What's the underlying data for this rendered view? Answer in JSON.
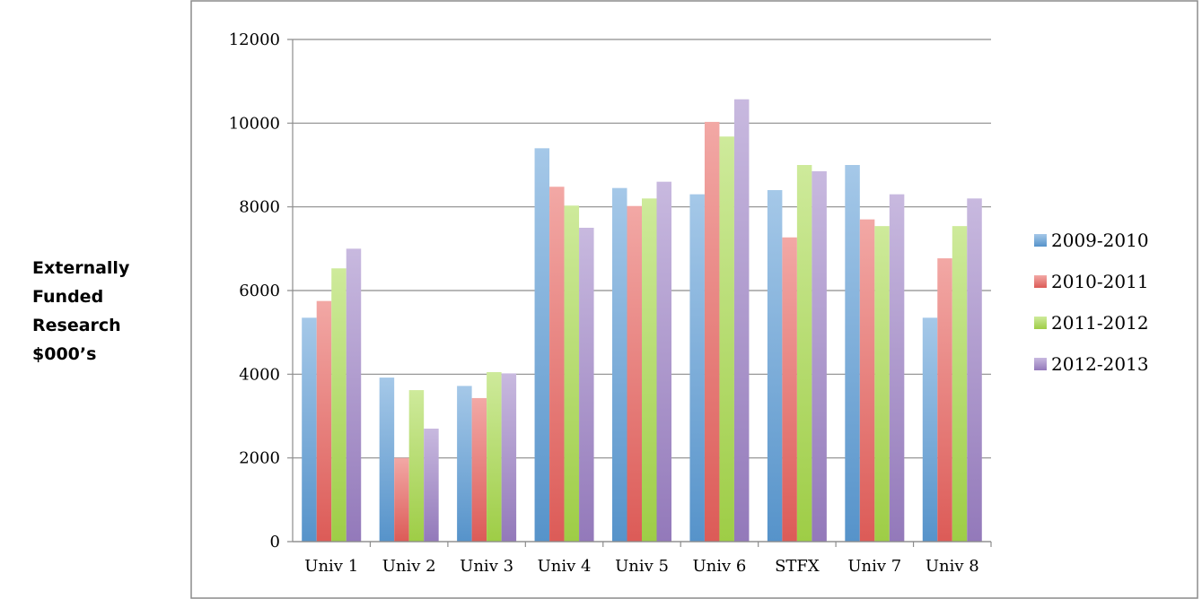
{
  "chart_data": {
    "type": "bar",
    "title": "",
    "xlabel": "",
    "ylabel_lines": [
      "Externally",
      "Funded",
      "Research",
      "$000’s"
    ],
    "categories": [
      "Univ 1",
      "Univ 2",
      "Univ 3",
      "Univ 4",
      "Univ 5",
      "Univ 6",
      "STFX",
      "Univ 7",
      "Univ 8"
    ],
    "ylim": [
      0,
      12000
    ],
    "yticks": [
      "0",
      "2000",
      "4000",
      "6000",
      "8000",
      "10000",
      "12000"
    ],
    "grid": true,
    "legend_position": "right",
    "series": [
      {
        "name": "2009-2010",
        "color": "#5b9bd5",
        "values": [
          5350,
          3920,
          3720,
          9400,
          8450,
          8300,
          8400,
          9000,
          5350
        ]
      },
      {
        "name": "2010-2011",
        "color": "#e8605c",
        "values": [
          5750,
          2000,
          3430,
          8480,
          8020,
          10030,
          7270,
          7700,
          6770
        ]
      },
      {
        "name": "2011-2012",
        "color": "#a6d84a",
        "values": [
          6530,
          3620,
          4050,
          8030,
          8200,
          9680,
          9000,
          7540,
          7540
        ]
      },
      {
        "name": "2012-2013",
        "color": "#9b7fc4",
        "values": [
          7000,
          2700,
          4020,
          7500,
          8600,
          10570,
          8850,
          8300,
          8200
        ]
      }
    ]
  }
}
